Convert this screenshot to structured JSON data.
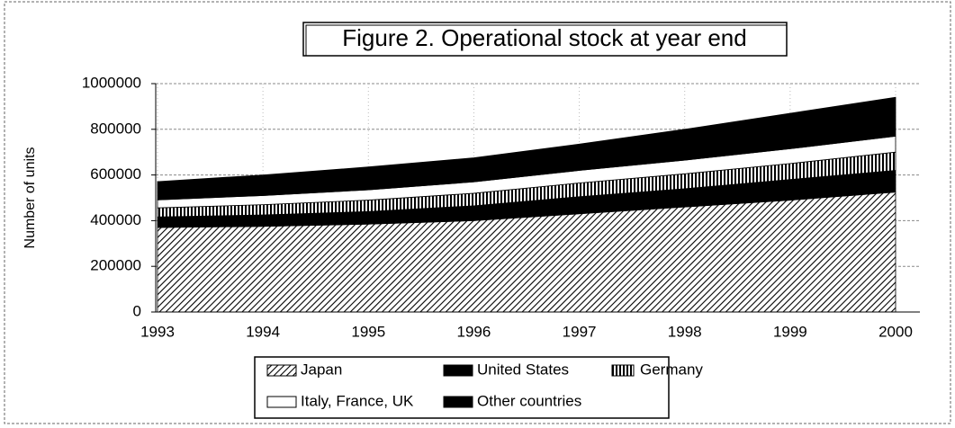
{
  "chart_data": {
    "type": "stacked_area",
    "title": "Figure 2.  Operational stock at year end",
    "y_label": "Number of units",
    "categories": [
      "1993",
      "1994",
      "1995",
      "1996",
      "1997",
      "1998",
      "1999",
      "2000"
    ],
    "series": [
      {
        "name": "Japan",
        "color": "#000000",
        "fill": "hatch",
        "values": [
          370000,
          375000,
          385000,
          400000,
          430000,
          460000,
          490000,
          525000
        ]
      },
      {
        "name": "United States",
        "color": "#000000",
        "fill": "solid",
        "values": [
          46000,
          50000,
          55000,
          65000,
          75000,
          80000,
          90000,
          95000
        ]
      },
      {
        "name": "Germany",
        "color": "#000000",
        "fill": "vstripe",
        "values": [
          40000,
          45000,
          50000,
          55000,
          60000,
          65000,
          70000,
          80000
        ]
      },
      {
        "name": "Italy, France, UK",
        "color": "#ffffff",
        "fill": "solid",
        "values": [
          35000,
          40000,
          45000,
          50000,
          55000,
          60000,
          65000,
          70000
        ]
      },
      {
        "name": "Other countries",
        "color": "#000000",
        "fill": "solid",
        "values": [
          80000,
          90000,
          100000,
          105000,
          115000,
          135000,
          155000,
          170000
        ]
      }
    ],
    "ylim": [
      0,
      1000000
    ],
    "yticks": [
      0,
      200000,
      400000,
      600000,
      800000,
      1000000
    ],
    "grid": true
  }
}
